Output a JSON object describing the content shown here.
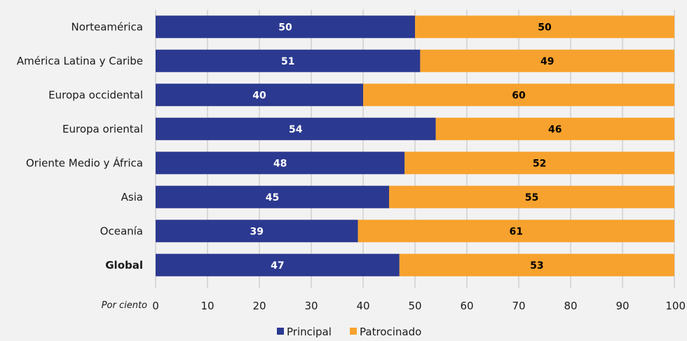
{
  "chart_data": {
    "type": "bar",
    "orientation": "horizontal",
    "stacked": true,
    "categories": [
      "Norteamérica",
      "América Latina y Caribe",
      "Europa occidental",
      "Europa oriental",
      "Oriente Medio y África",
      "Asia",
      "Oceanía",
      "Global"
    ],
    "emphasized_category": "Global",
    "series": [
      {
        "name": "Principal",
        "color": "#2b3990",
        "label_color": "#ffffff",
        "values": [
          50,
          51,
          40,
          54,
          48,
          45,
          39,
          47
        ],
        "labels": [
          "50",
          "51",
          "40",
          "54",
          "48",
          "45",
          "39",
          "47"
        ]
      },
      {
        "name": "Patrocinado",
        "color": "#f7a22e",
        "label_color": "#000000",
        "values": [
          50,
          49,
          60,
          46,
          52,
          55,
          61,
          53
        ],
        "labels": [
          "50",
          "49",
          "60",
          "46",
          "52",
          "55",
          "61",
          "53"
        ]
      }
    ],
    "xaxis_unit_label": "Por ciento",
    "xlim": [
      0,
      100
    ],
    "xticks": [
      0,
      10,
      20,
      30,
      40,
      50,
      60,
      70,
      80,
      90,
      100
    ],
    "xtick_labels": [
      "0",
      "10",
      "20",
      "30",
      "40",
      "50",
      "60",
      "70",
      "80",
      "90",
      "100"
    ],
    "grid": "vertical",
    "grid_color": "#bfbfbf",
    "legend_position": "bottom-center"
  }
}
